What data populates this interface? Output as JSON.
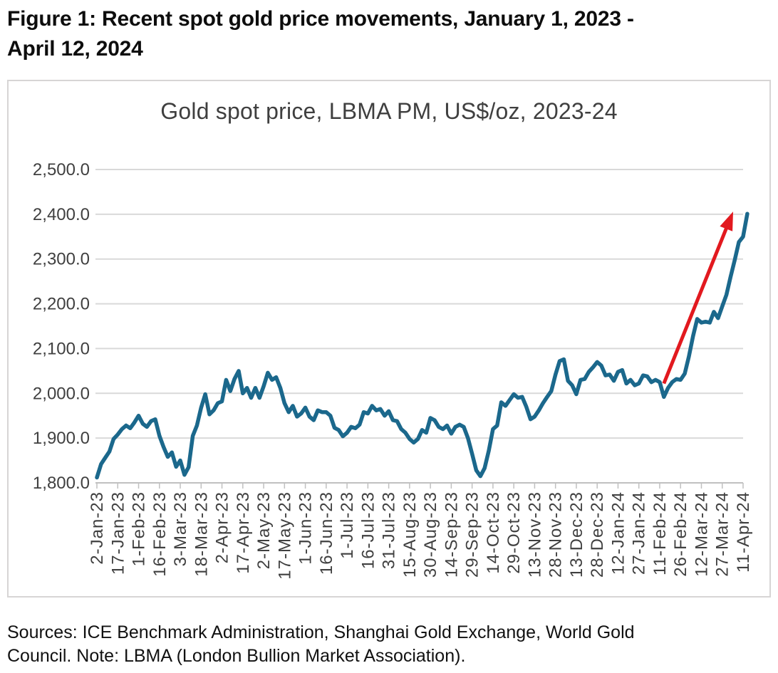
{
  "figure": {
    "title_line1": "Figure 1: Recent spot gold price movements, January 1, 2023 -",
    "title_line2": "April 12, 2024"
  },
  "chart_data": {
    "type": "line",
    "title": "Gold spot price, LBMA PM, US$/oz, 2023-24",
    "xlabel": "",
    "ylabel": "",
    "grid": "horizontal",
    "legend": "none",
    "y_axis": {
      "range": [
        1800,
        2500
      ],
      "ticks": [
        1800,
        1900,
        2000,
        2100,
        2200,
        2300,
        2400,
        2500
      ],
      "tick_labels": [
        "1,800.0",
        "1,900.0",
        "2,000.0",
        "2,100.0",
        "2,200.0",
        "2,300.0",
        "2,400.0",
        "2,500.0"
      ]
    },
    "x_axis": {
      "tick_labels": [
        "2-Jan-23",
        "17-Jan-23",
        "1-Feb-23",
        "16-Feb-23",
        "3-Mar-23",
        "18-Mar-23",
        "2-Apr-23",
        "17-Apr-23",
        "2-May-23",
        "17-May-23",
        "1-Jun-23",
        "16-Jun-23",
        "1-Jul-23",
        "16-Jul-23",
        "31-Jul-23",
        "15-Aug-23",
        "30-Aug-23",
        "14-Sep-23",
        "29-Sep-23",
        "14-Oct-23",
        "29-Oct-23",
        "13-Nov-23",
        "28-Nov-23",
        "13-Dec-23",
        "28-Dec-23",
        "12-Jan-24",
        "27-Jan-24",
        "11-Feb-24",
        "26-Feb-24",
        "12-Mar-24",
        "27-Mar-24",
        "11-Apr-24"
      ]
    },
    "points_per_tick": 5,
    "series": [
      {
        "name": "Gold spot price, LBMA PM (US$/oz)",
        "color": "#1B688C",
        "values": [
          1812,
          1842,
          1856,
          1870,
          1898,
          1908,
          1920,
          1928,
          1922,
          1935,
          1950,
          1932,
          1925,
          1938,
          1942,
          1905,
          1880,
          1858,
          1868,
          1836,
          1850,
          1818,
          1835,
          1905,
          1928,
          1968,
          1998,
          1953,
          1962,
          1978,
          1982,
          2030,
          2005,
          2032,
          2050,
          2000,
          2012,
          1990,
          2012,
          1990,
          2016,
          2046,
          2030,
          2036,
          2012,
          1978,
          1958,
          1972,
          1948,
          1955,
          1968,
          1948,
          1940,
          1962,
          1958,
          1958,
          1950,
          1923,
          1918,
          1904,
          1912,
          1925,
          1922,
          1930,
          1958,
          1955,
          1972,
          1962,
          1965,
          1950,
          1960,
          1940,
          1938,
          1920,
          1912,
          1898,
          1890,
          1898,
          1918,
          1912,
          1945,
          1940,
          1925,
          1920,
          1928,
          1910,
          1925,
          1930,
          1925,
          1900,
          1865,
          1828,
          1815,
          1833,
          1872,
          1920,
          1928,
          1980,
          1972,
          1985,
          1998,
          1990,
          1992,
          1970,
          1942,
          1948,
          1962,
          1978,
          1992,
          2005,
          2042,
          2072,
          2076,
          2028,
          2018,
          1998,
          2030,
          2032,
          2048,
          2058,
          2070,
          2062,
          2040,
          2042,
          2028,
          2048,
          2052,
          2022,
          2030,
          2018,
          2022,
          2040,
          2038,
          2025,
          2030,
          2025,
          1992,
          2012,
          2025,
          2032,
          2030,
          2044,
          2082,
          2128,
          2166,
          2158,
          2160,
          2158,
          2182,
          2168,
          2194,
          2220,
          2260,
          2298,
          2338,
          2350,
          2401
        ]
      }
    ],
    "annotation": {
      "type": "arrow",
      "color": "#E2191F",
      "from": {
        "index": 136,
        "value": 2022
      },
      "to": {
        "index": 152.6,
        "value": 2406
      }
    }
  },
  "footer": {
    "line1": "Sources: ICE Benchmark Administration, Shanghai Gold Exchange, World Gold",
    "line2": "Council. Note: LBMA (London Bullion Market Association)."
  },
  "colors": {
    "grid": "#D9D9D9",
    "axis": "#C0C0C0",
    "tick_text": "#404040",
    "border": "#D7D5D5"
  }
}
